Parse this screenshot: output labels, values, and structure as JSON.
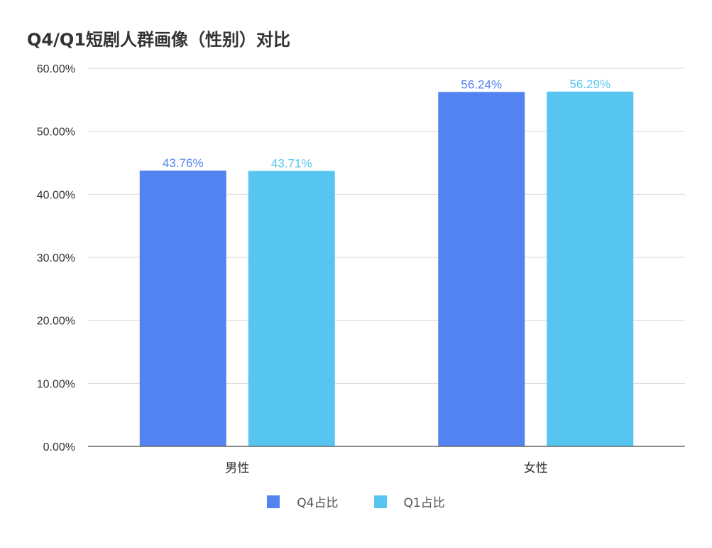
{
  "chart_data": {
    "type": "bar",
    "title": "Q4/Q1短剧人群画像（性别）对比",
    "categories": [
      "男性",
      "女性"
    ],
    "series": [
      {
        "name": "Q4占比",
        "values": [
          43.76,
          56.24
        ],
        "labels": [
          "43.76%",
          "56.24%"
        ],
        "color": "#5383F0"
      },
      {
        "name": "Q1占比",
        "values": [
          43.71,
          56.29
        ],
        "labels": [
          "43.71%",
          "56.29%"
        ],
        "color": "#56C6F1"
      }
    ],
    "ylim": [
      0,
      60
    ],
    "yticks": [
      "0.00%",
      "10.00%",
      "20.00%",
      "30.00%",
      "40.00%",
      "50.00%",
      "60.00%"
    ],
    "xlabel": "",
    "ylabel": "",
    "grid": true,
    "legend_position": "bottom"
  }
}
